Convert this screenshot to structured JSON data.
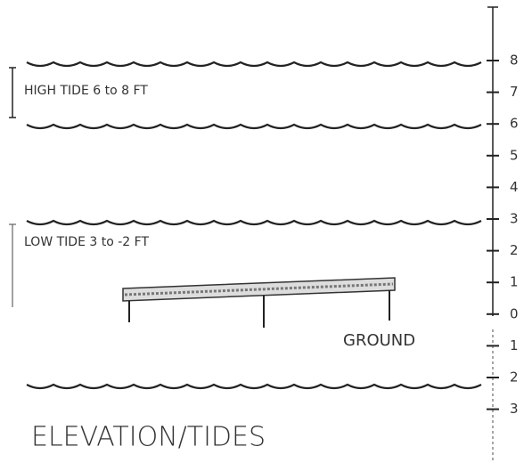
{
  "labels": {
    "high_tide": "HIGH TIDE 6 to 8 FT",
    "low_tide": "LOW TIDE 3 to -2 FT",
    "ground": "GROUND",
    "title": "ELEVATION/TIDES"
  },
  "scale": {
    "ticks": [
      "8",
      "7",
      "6",
      "5",
      "4",
      "3",
      "2",
      "1",
      "0",
      "1",
      "2",
      "3"
    ]
  }
}
